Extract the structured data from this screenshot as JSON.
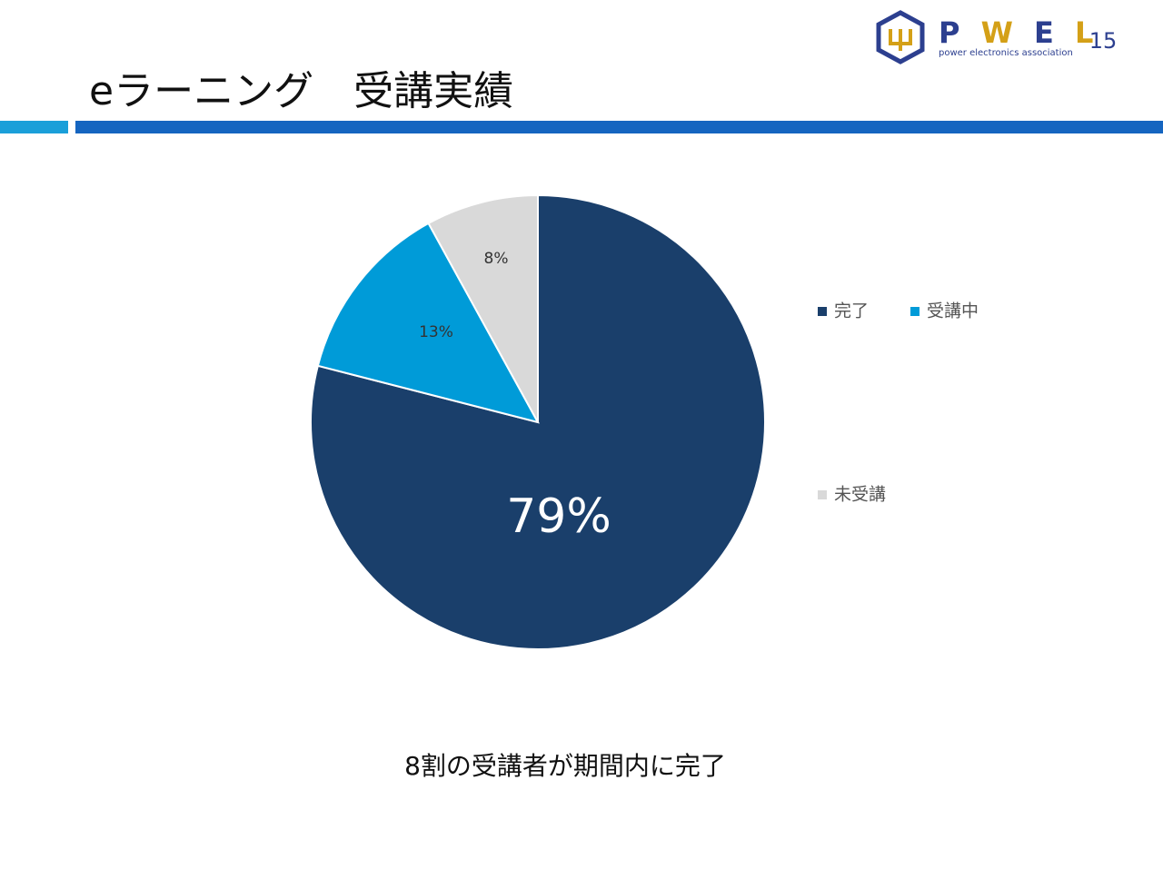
{
  "slide": {
    "title": "eラーニング　受講実績",
    "page_number": "15",
    "caption": "8割の受講者が期間内に完了",
    "logo": {
      "letters": [
        "P",
        "W",
        "E",
        "L"
      ],
      "tagline": "power electronics association"
    }
  },
  "chart_data": {
    "type": "pie",
    "categories": [
      "完了",
      "受講中",
      "未受講"
    ],
    "values": [
      79,
      13,
      8
    ],
    "value_labels": [
      "79%",
      "13%",
      "8%"
    ],
    "colors": [
      "#1a3f6b",
      "#009bd8",
      "#d9d9d9"
    ],
    "legend": "right"
  }
}
